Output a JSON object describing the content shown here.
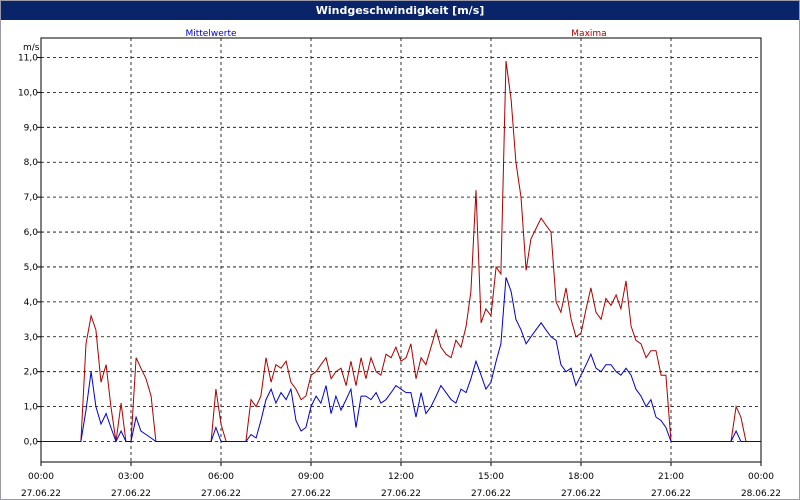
{
  "window": {
    "title": "Windgeschwindigkeit [m/s]"
  },
  "chart_data": {
    "type": "line",
    "title": "Windgeschwindigkeit [m/s]",
    "ylabel": "m/s",
    "ylim": [
      0,
      11
    ],
    "yticks": [
      "0,0",
      "1,0",
      "2,0",
      "3,0",
      "4,0",
      "5,0",
      "6,0",
      "7,0",
      "8,0",
      "9,0",
      "10,0",
      "11,0"
    ],
    "xlim_hours": [
      0,
      24
    ],
    "xticks": [
      {
        "time": "00:00",
        "date": "27.06.22"
      },
      {
        "time": "03:00",
        "date": "27.06.22"
      },
      {
        "time": "06:00",
        "date": "27.06.22"
      },
      {
        "time": "09:00",
        "date": "27.06.22"
      },
      {
        "time": "12:00",
        "date": "27.06.22"
      },
      {
        "time": "15:00",
        "date": "27.06.22"
      },
      {
        "time": "18:00",
        "date": "27.06.22"
      },
      {
        "time": "21:00",
        "date": "27.06.22"
      },
      {
        "time": "00:00",
        "date": "28.06.22"
      }
    ],
    "grid": true,
    "series": [
      {
        "name": "Mittelwerte",
        "color": "#0000cc",
        "points": [
          [
            0,
            0
          ],
          [
            1.33,
            0
          ],
          [
            1.5,
            0.9
          ],
          [
            1.67,
            2.0
          ],
          [
            1.83,
            1.0
          ],
          [
            2.0,
            0.5
          ],
          [
            2.17,
            0.8
          ],
          [
            2.33,
            0.4
          ],
          [
            2.5,
            0
          ],
          [
            2.67,
            0.3
          ],
          [
            2.83,
            0
          ],
          [
            3.0,
            0
          ],
          [
            3.17,
            0.7
          ],
          [
            3.33,
            0.3
          ],
          [
            3.5,
            0.2
          ],
          [
            3.67,
            0.1
          ],
          [
            3.83,
            0
          ],
          [
            5.67,
            0
          ],
          [
            5.83,
            0.4
          ],
          [
            6.0,
            0
          ],
          [
            6.17,
            0
          ],
          [
            6.83,
            0
          ],
          [
            7.0,
            0.2
          ],
          [
            7.17,
            0.1
          ],
          [
            7.33,
            0.6
          ],
          [
            7.5,
            1.2
          ],
          [
            7.67,
            1.5
          ],
          [
            7.83,
            1.1
          ],
          [
            8.0,
            1.4
          ],
          [
            8.17,
            1.2
          ],
          [
            8.33,
            1.5
          ],
          [
            8.5,
            0.6
          ],
          [
            8.67,
            0.3
          ],
          [
            8.83,
            0.4
          ],
          [
            9.0,
            1.0
          ],
          [
            9.17,
            1.3
          ],
          [
            9.33,
            1.1
          ],
          [
            9.5,
            1.6
          ],
          [
            9.67,
            0.8
          ],
          [
            9.83,
            1.3
          ],
          [
            10.0,
            0.9
          ],
          [
            10.17,
            1.2
          ],
          [
            10.33,
            1.5
          ],
          [
            10.5,
            0.4
          ],
          [
            10.67,
            1.3
          ],
          [
            10.83,
            1.3
          ],
          [
            11.0,
            1.2
          ],
          [
            11.17,
            1.4
          ],
          [
            11.33,
            1.1
          ],
          [
            11.5,
            1.2
          ],
          [
            11.67,
            1.4
          ],
          [
            11.83,
            1.6
          ],
          [
            12.0,
            1.5
          ],
          [
            12.17,
            1.4
          ],
          [
            12.33,
            1.4
          ],
          [
            12.5,
            0.7
          ],
          [
            12.67,
            1.4
          ],
          [
            12.83,
            0.8
          ],
          [
            13.0,
            1.0
          ],
          [
            13.17,
            1.3
          ],
          [
            13.33,
            1.6
          ],
          [
            13.5,
            1.4
          ],
          [
            13.67,
            1.2
          ],
          [
            13.83,
            1.1
          ],
          [
            14.0,
            1.5
          ],
          [
            14.17,
            1.4
          ],
          [
            14.33,
            1.8
          ],
          [
            14.5,
            2.3
          ],
          [
            14.67,
            1.9
          ],
          [
            14.83,
            1.5
          ],
          [
            15.0,
            1.7
          ],
          [
            15.17,
            2.3
          ],
          [
            15.33,
            2.8
          ],
          [
            15.5,
            4.7
          ],
          [
            15.67,
            4.3
          ],
          [
            15.83,
            3.5
          ],
          [
            16.0,
            3.2
          ],
          [
            16.17,
            2.8
          ],
          [
            16.33,
            3.0
          ],
          [
            16.5,
            3.2
          ],
          [
            16.67,
            3.4
          ],
          [
            16.83,
            3.2
          ],
          [
            17.0,
            3.0
          ],
          [
            17.17,
            2.9
          ],
          [
            17.33,
            2.2
          ],
          [
            17.5,
            2.0
          ],
          [
            17.67,
            2.1
          ],
          [
            17.83,
            1.6
          ],
          [
            18.0,
            1.9
          ],
          [
            18.17,
            2.2
          ],
          [
            18.33,
            2.5
          ],
          [
            18.5,
            2.1
          ],
          [
            18.67,
            2.0
          ],
          [
            18.83,
            2.2
          ],
          [
            19.0,
            2.2
          ],
          [
            19.17,
            2.0
          ],
          [
            19.33,
            1.9
          ],
          [
            19.5,
            2.1
          ],
          [
            19.67,
            1.9
          ],
          [
            19.83,
            1.5
          ],
          [
            20.0,
            1.3
          ],
          [
            20.17,
            1.0
          ],
          [
            20.33,
            1.2
          ],
          [
            20.5,
            0.7
          ],
          [
            20.67,
            0.6
          ],
          [
            20.83,
            0.4
          ],
          [
            21.0,
            0
          ],
          [
            23.0,
            0
          ],
          [
            23.17,
            0.3
          ],
          [
            23.33,
            0
          ],
          [
            24.0,
            0
          ]
        ]
      },
      {
        "name": "Maxima",
        "color": "#aa0000",
        "points": [
          [
            0,
            0
          ],
          [
            1.33,
            0
          ],
          [
            1.5,
            2.8
          ],
          [
            1.67,
            3.6
          ],
          [
            1.83,
            3.2
          ],
          [
            2.0,
            1.7
          ],
          [
            2.17,
            2.2
          ],
          [
            2.33,
            1.0
          ],
          [
            2.5,
            0
          ],
          [
            2.67,
            1.1
          ],
          [
            2.83,
            0
          ],
          [
            3.0,
            0
          ],
          [
            3.17,
            2.4
          ],
          [
            3.33,
            2.1
          ],
          [
            3.5,
            1.8
          ],
          [
            3.67,
            1.3
          ],
          [
            3.83,
            0
          ],
          [
            5.67,
            0
          ],
          [
            5.83,
            1.5
          ],
          [
            6.0,
            0.5
          ],
          [
            6.17,
            0
          ],
          [
            6.83,
            0
          ],
          [
            7.0,
            1.2
          ],
          [
            7.17,
            1.0
          ],
          [
            7.33,
            1.3
          ],
          [
            7.5,
            2.4
          ],
          [
            7.67,
            1.7
          ],
          [
            7.83,
            2.2
          ],
          [
            8.0,
            2.1
          ],
          [
            8.17,
            2.3
          ],
          [
            8.33,
            1.7
          ],
          [
            8.5,
            1.5
          ],
          [
            8.67,
            1.2
          ],
          [
            8.83,
            1.3
          ],
          [
            9.0,
            1.9
          ],
          [
            9.17,
            2.0
          ],
          [
            9.33,
            2.2
          ],
          [
            9.5,
            2.4
          ],
          [
            9.67,
            1.8
          ],
          [
            9.83,
            2.0
          ],
          [
            10.0,
            2.1
          ],
          [
            10.17,
            1.6
          ],
          [
            10.33,
            2.3
          ],
          [
            10.5,
            1.6
          ],
          [
            10.67,
            2.4
          ],
          [
            10.83,
            1.8
          ],
          [
            11.0,
            2.4
          ],
          [
            11.17,
            2.0
          ],
          [
            11.33,
            1.9
          ],
          [
            11.5,
            2.5
          ],
          [
            11.67,
            2.4
          ],
          [
            11.83,
            2.7
          ],
          [
            12.0,
            2.3
          ],
          [
            12.17,
            2.4
          ],
          [
            12.33,
            2.8
          ],
          [
            12.5,
            1.8
          ],
          [
            12.67,
            2.4
          ],
          [
            12.83,
            2.2
          ],
          [
            13.0,
            2.7
          ],
          [
            13.17,
            3.2
          ],
          [
            13.33,
            2.7
          ],
          [
            13.5,
            2.5
          ],
          [
            13.67,
            2.4
          ],
          [
            13.83,
            2.9
          ],
          [
            14.0,
            2.7
          ],
          [
            14.17,
            3.3
          ],
          [
            14.33,
            4.3
          ],
          [
            14.5,
            7.2
          ],
          [
            14.67,
            3.4
          ],
          [
            14.83,
            3.8
          ],
          [
            15.0,
            3.6
          ],
          [
            15.17,
            5.0
          ],
          [
            15.33,
            4.8
          ],
          [
            15.5,
            10.9
          ],
          [
            15.67,
            9.8
          ],
          [
            15.83,
            8.0
          ],
          [
            16.0,
            7.0
          ],
          [
            16.17,
            4.9
          ],
          [
            16.33,
            5.8
          ],
          [
            16.5,
            6.1
          ],
          [
            16.67,
            6.4
          ],
          [
            16.83,
            6.2
          ],
          [
            17.0,
            6.0
          ],
          [
            17.17,
            4.0
          ],
          [
            17.33,
            3.7
          ],
          [
            17.5,
            4.4
          ],
          [
            17.67,
            3.5
          ],
          [
            17.83,
            3.0
          ],
          [
            18.0,
            3.1
          ],
          [
            18.17,
            3.8
          ],
          [
            18.33,
            4.4
          ],
          [
            18.5,
            3.7
          ],
          [
            18.67,
            3.5
          ],
          [
            18.83,
            4.1
          ],
          [
            19.0,
            3.9
          ],
          [
            19.17,
            4.2
          ],
          [
            19.33,
            3.8
          ],
          [
            19.5,
            4.6
          ],
          [
            19.67,
            3.3
          ],
          [
            19.83,
            2.9
          ],
          [
            20.0,
            2.8
          ],
          [
            20.17,
            2.4
          ],
          [
            20.33,
            2.6
          ],
          [
            20.5,
            2.6
          ],
          [
            20.67,
            1.9
          ],
          [
            20.83,
            1.9
          ],
          [
            21.0,
            0
          ],
          [
            23.0,
            0
          ],
          [
            23.17,
            1.0
          ],
          [
            23.33,
            0.7
          ],
          [
            23.5,
            0
          ],
          [
            24.0,
            0
          ]
        ]
      }
    ]
  }
}
